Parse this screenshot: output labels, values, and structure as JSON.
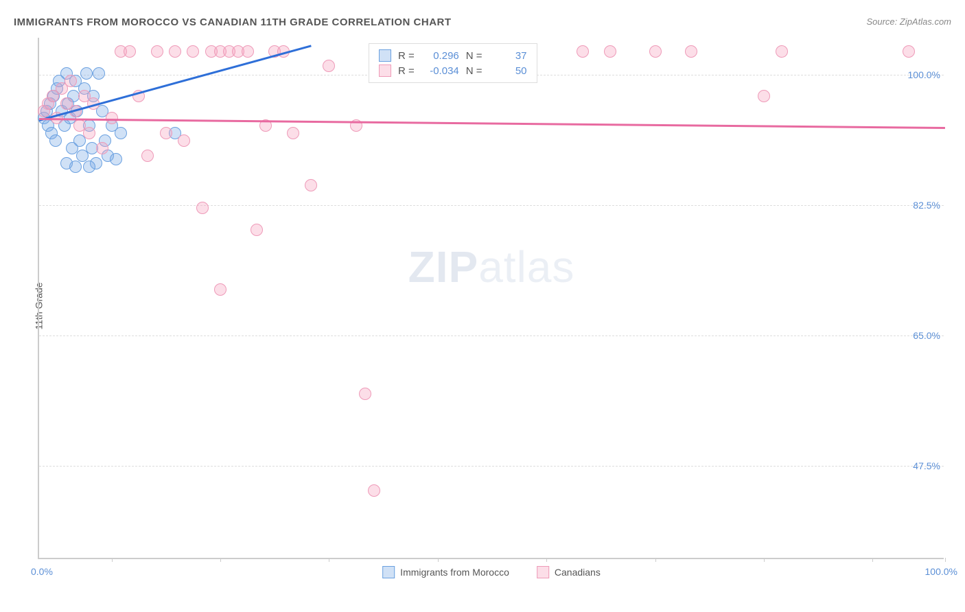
{
  "chart": {
    "type": "scatter",
    "title": "IMMIGRANTS FROM MOROCCO VS CANADIAN 11TH GRADE CORRELATION CHART",
    "source": "Source: ZipAtlas.com",
    "y_axis_label": "11th Grade",
    "watermark_bold": "ZIP",
    "watermark_light": "atlas",
    "xlim": [
      0,
      100
    ],
    "ylim": [
      35,
      105
    ],
    "x_min_label": "0.0%",
    "x_max_label": "100.0%",
    "y_ticks": [
      {
        "v": 100,
        "label": "100.0%"
      },
      {
        "v": 82.5,
        "label": "82.5%"
      },
      {
        "v": 65,
        "label": "65.0%"
      },
      {
        "v": 47.5,
        "label": "47.5%"
      }
    ],
    "x_tick_positions": [
      8,
      20,
      32,
      44,
      56,
      68,
      80,
      92,
      100
    ],
    "grid_color": "#dddddd",
    "axis_color": "#cccccc",
    "tick_label_color": "#5b8fd6",
    "series": [
      {
        "name": "Immigrants from Morocco",
        "color_fill": "rgba(120,170,230,0.35)",
        "color_stroke": "#6aa0e0",
        "marker_radius": 9,
        "R": "0.296",
        "N": "37",
        "trend": {
          "x1": 0,
          "y1": 94,
          "x2": 30,
          "y2": 104,
          "color": "#2e6fd8",
          "width": 3
        },
        "points": [
          [
            0.5,
            94
          ],
          [
            0.8,
            95
          ],
          [
            1,
            93
          ],
          [
            1.2,
            96
          ],
          [
            1.4,
            92
          ],
          [
            1.6,
            97
          ],
          [
            1.8,
            91
          ],
          [
            2,
            98
          ],
          [
            2.2,
            99
          ],
          [
            2.5,
            95
          ],
          [
            2.8,
            93
          ],
          [
            3,
            100
          ],
          [
            3.2,
            96
          ],
          [
            3.4,
            94
          ],
          [
            3.6,
            90
          ],
          [
            3.8,
            97
          ],
          [
            4,
            99
          ],
          [
            4.2,
            95
          ],
          [
            4.5,
            91
          ],
          [
            4.8,
            89
          ],
          [
            5,
            98
          ],
          [
            5.2,
            100
          ],
          [
            5.5,
            93
          ],
          [
            5.8,
            90
          ],
          [
            6,
            97
          ],
          [
            6.3,
            88
          ],
          [
            6.6,
            100
          ],
          [
            7,
            95
          ],
          [
            7.3,
            91
          ],
          [
            7.6,
            89
          ],
          [
            8,
            93
          ],
          [
            8.5,
            88.5
          ],
          [
            9,
            92
          ],
          [
            3,
            88
          ],
          [
            4,
            87.5
          ],
          [
            5.5,
            87.5
          ],
          [
            15,
            92
          ]
        ]
      },
      {
        "name": "Canadians",
        "color_fill": "rgba(245,160,190,0.35)",
        "color_stroke": "#ee9ab8",
        "marker_radius": 9,
        "R": "-0.034",
        "N": "50",
        "trend": {
          "x1": 0,
          "y1": 94.2,
          "x2": 100,
          "y2": 93,
          "color": "#e86aa0",
          "width": 3
        },
        "points": [
          [
            0.5,
            95
          ],
          [
            1,
            96
          ],
          [
            1.5,
            97
          ],
          [
            2,
            94
          ],
          [
            2.5,
            98
          ],
          [
            3,
            96
          ],
          [
            3.5,
            99
          ],
          [
            4,
            95
          ],
          [
            4.5,
            93
          ],
          [
            5,
            97
          ],
          [
            5.5,
            92
          ],
          [
            6,
            96
          ],
          [
            7,
            90
          ],
          [
            8,
            94
          ],
          [
            9,
            103
          ],
          [
            10,
            103
          ],
          [
            11,
            97
          ],
          [
            12,
            89
          ],
          [
            13,
            103
          ],
          [
            14,
            92
          ],
          [
            15,
            103
          ],
          [
            16,
            91
          ],
          [
            17,
            103
          ],
          [
            18,
            82
          ],
          [
            19,
            103
          ],
          [
            20,
            103
          ],
          [
            21,
            103
          ],
          [
            22,
            103
          ],
          [
            23,
            103
          ],
          [
            24,
            79
          ],
          [
            25,
            93
          ],
          [
            26,
            103
          ],
          [
            27,
            103
          ],
          [
            28,
            92
          ],
          [
            30,
            85
          ],
          [
            32,
            101
          ],
          [
            35,
            93
          ],
          [
            36,
            57
          ],
          [
            37,
            44
          ],
          [
            45,
            103
          ],
          [
            48,
            103
          ],
          [
            52,
            103
          ],
          [
            60,
            103
          ],
          [
            63,
            103
          ],
          [
            68,
            103
          ],
          [
            72,
            103
          ],
          [
            80,
            97
          ],
          [
            82,
            103
          ],
          [
            96,
            103
          ],
          [
            20,
            71
          ]
        ]
      }
    ],
    "legend_bottom": [
      {
        "label": "Immigrants from Morocco",
        "fill": "rgba(120,170,230,0.35)",
        "stroke": "#6aa0e0"
      },
      {
        "label": "Canadians",
        "fill": "rgba(245,160,190,0.35)",
        "stroke": "#ee9ab8"
      }
    ]
  }
}
